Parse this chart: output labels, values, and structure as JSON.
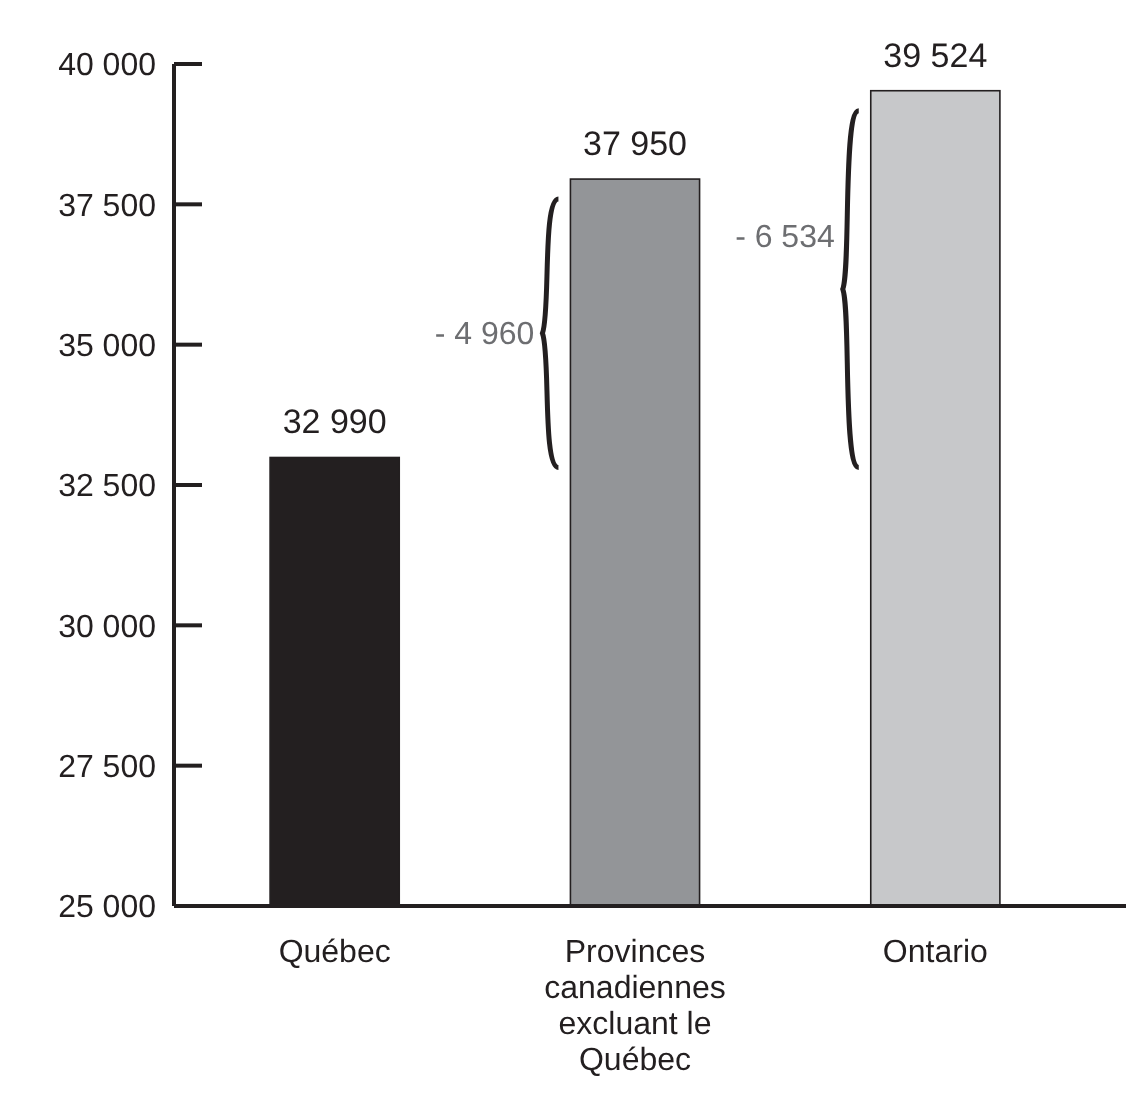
{
  "chart_data": {
    "type": "bar",
    "categories": [
      "Québec",
      "Provinces canadiennes excluant le Québec",
      "Ontario"
    ],
    "values": [
      32990,
      37950,
      39524
    ],
    "colors": [
      "#231f20",
      "#939598",
      "#c7c8ca"
    ],
    "value_labels": [
      "32 990",
      "37 950",
      "39 524"
    ],
    "ylim": [
      25000,
      40000
    ],
    "yticks": [
      {
        "value": 25000,
        "label": "25 000"
      },
      {
        "value": 27500,
        "label": "27 500"
      },
      {
        "value": 30000,
        "label": "30 000"
      },
      {
        "value": 32500,
        "label": "32 500"
      },
      {
        "value": 35000,
        "label": "35 000"
      },
      {
        "value": 37500,
        "label": "37 500"
      },
      {
        "value": 40000,
        "label": "40 000"
      }
    ],
    "annotations": [
      "- 4 960",
      "- 6 534"
    ],
    "grid": false
  }
}
